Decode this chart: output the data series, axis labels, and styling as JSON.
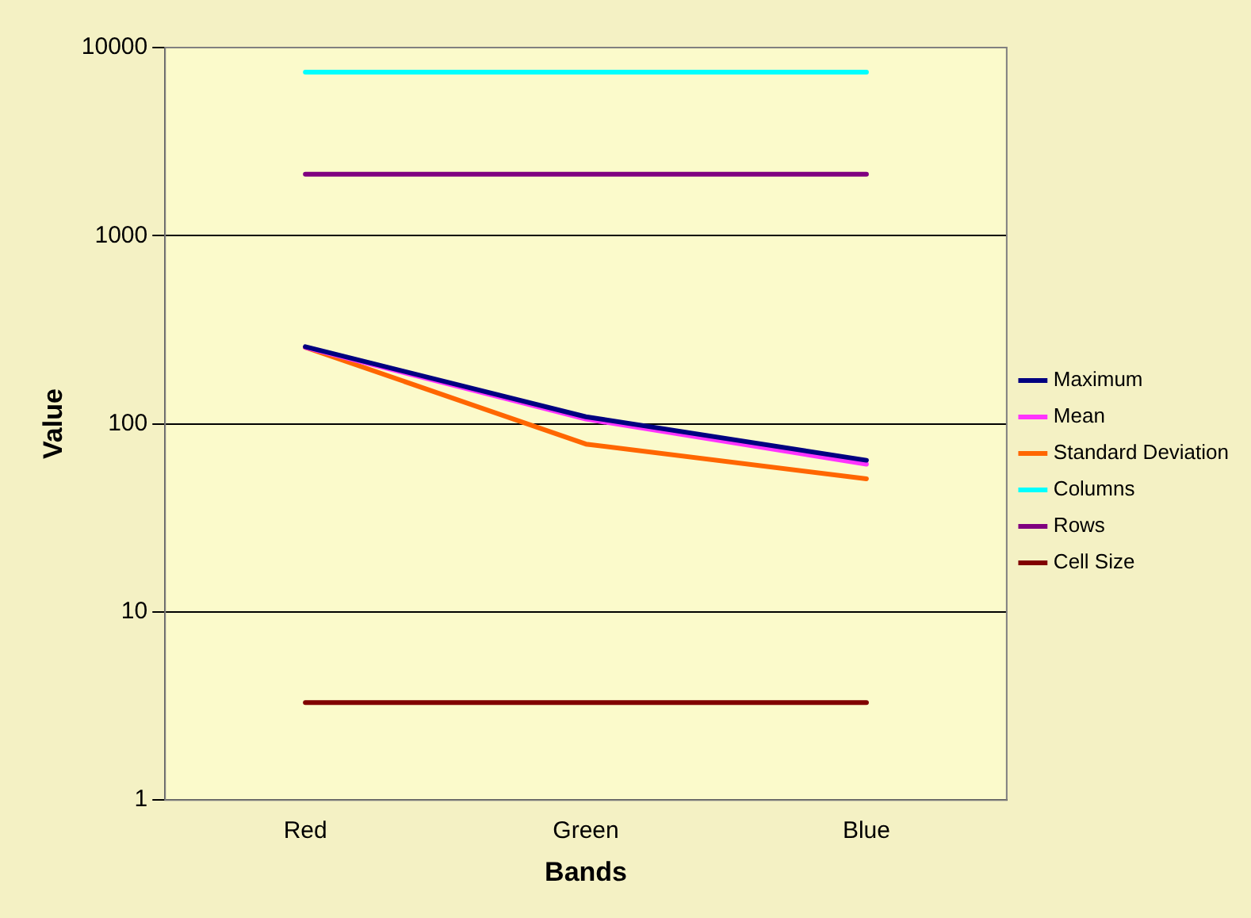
{
  "chart_data": {
    "type": "line",
    "xlabel": "Bands",
    "ylabel": "Value",
    "categories": [
      "Red",
      "Green",
      "Blue"
    ],
    "series": [
      {
        "name": "Maximum",
        "color": "#000080",
        "values": [
          257,
          109,
          64
        ]
      },
      {
        "name": "Mean",
        "color": "#ff33ff",
        "values": [
          255,
          106,
          61
        ]
      },
      {
        "name": "Standard Deviation",
        "color": "#ff6600",
        "values": [
          255,
          78,
          51
        ]
      },
      {
        "name": "Columns",
        "color": "#00ffff",
        "values": [
          7400,
          7400,
          7400
        ]
      },
      {
        "name": "Rows",
        "color": "#800080",
        "values": [
          2120,
          2120,
          2120
        ]
      },
      {
        "name": "Cell Size",
        "color": "#800000",
        "values": [
          3.3,
          3.3,
          3.3
        ]
      }
    ],
    "log": "y",
    "ylim": [
      1,
      10000
    ],
    "yticks": [
      1,
      10,
      100,
      1000,
      10000
    ],
    "grid": "y",
    "legend": "right",
    "marker": "none"
  }
}
